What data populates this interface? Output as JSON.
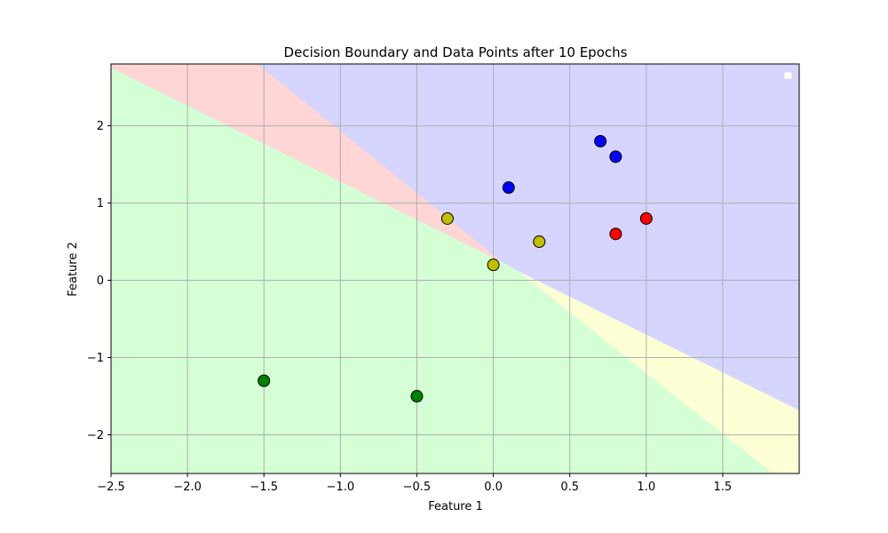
{
  "chart_data": {
    "type": "scatter",
    "title": "Decision Boundary and Data Points after 10 Epochs",
    "xlabel": "Feature 1",
    "ylabel": "Feature 2",
    "xlim": [
      -2.5,
      2.0
    ],
    "ylim": [
      -2.5,
      2.8
    ],
    "xticks": [
      -2.5,
      -2.0,
      -1.5,
      -1.0,
      -0.5,
      0.0,
      0.5,
      1.0,
      1.5
    ],
    "xtick_labels": [
      "−2.5",
      "−2.0",
      "−1.5",
      "−1.0",
      "−0.5",
      "0.0",
      "0.5",
      "1.0",
      "1.5"
    ],
    "yticks": [
      -2,
      -1,
      0,
      1,
      2
    ],
    "ytick_labels": [
      "−2",
      "−1",
      "0",
      "1",
      "2"
    ],
    "grid": true,
    "legend": "top-right (empty)",
    "regions": [
      {
        "class": "blue",
        "color": "#d5d5ff"
      },
      {
        "class": "red",
        "color": "#ffd5d5"
      },
      {
        "class": "green",
        "color": "#d5ffd5"
      },
      {
        "class": "yellow",
        "color": "#ffffd5"
      }
    ],
    "points": [
      {
        "x": 0.7,
        "y": 1.8,
        "class": "blue",
        "color": "#0000ff"
      },
      {
        "x": 0.8,
        "y": 1.6,
        "class": "blue",
        "color": "#0000ff"
      },
      {
        "x": 0.1,
        "y": 1.2,
        "class": "blue",
        "color": "#0000ff"
      },
      {
        "x": 1.0,
        "y": 0.8,
        "class": "red",
        "color": "#ff0000"
      },
      {
        "x": 0.8,
        "y": 0.6,
        "class": "red",
        "color": "#ff0000"
      },
      {
        "x": -0.3,
        "y": 0.8,
        "class": "yellow",
        "color": "#bfbf00"
      },
      {
        "x": 0.3,
        "y": 0.5,
        "class": "yellow",
        "color": "#bfbf00"
      },
      {
        "x": 0.0,
        "y": 0.2,
        "class": "yellow",
        "color": "#bfbf00"
      },
      {
        "x": -1.5,
        "y": -1.3,
        "class": "green",
        "color": "#008000"
      },
      {
        "x": -0.5,
        "y": -1.5,
        "class": "green",
        "color": "#008000"
      }
    ]
  }
}
